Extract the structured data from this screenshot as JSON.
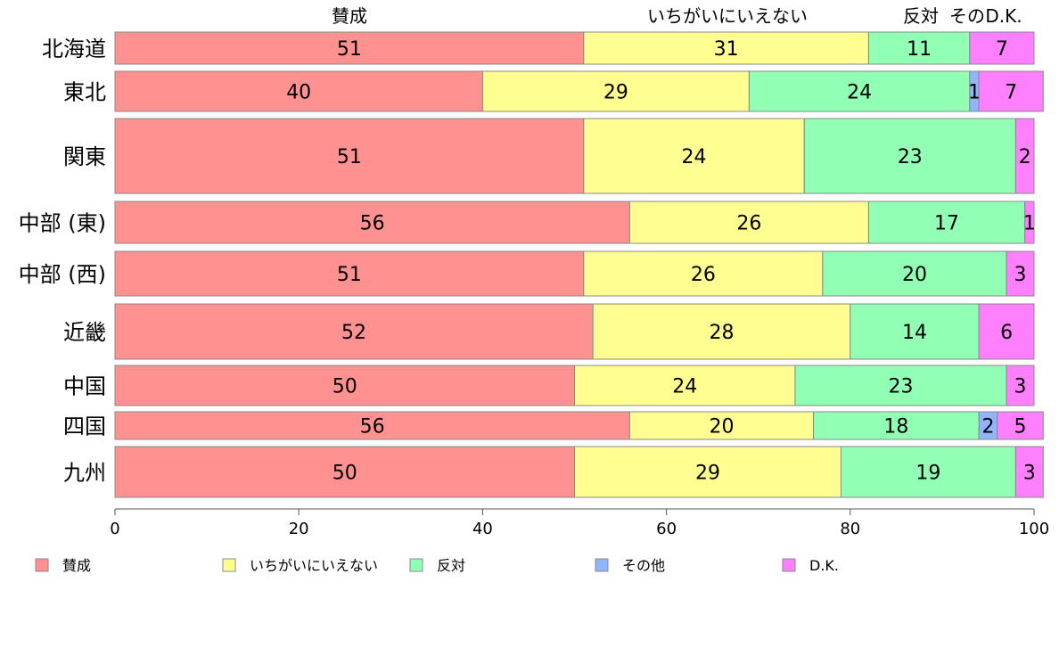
{
  "chart_data": {
    "type": "bar",
    "orientation": "horizontal",
    "stacked": true,
    "categories": [
      "北海道",
      "東北",
      "関東",
      "中部 (東)",
      "中部 (西)",
      "近畿",
      "中国",
      "四国",
      "九州"
    ],
    "series": [
      {
        "name": "賛成",
        "color": "#ff9191",
        "values": [
          51,
          40,
          51,
          56,
          51,
          52,
          50,
          56,
          50
        ]
      },
      {
        "name": "いちがいにいえない",
        "color": "#ffff91",
        "values": [
          31,
          29,
          24,
          26,
          26,
          28,
          24,
          20,
          29
        ]
      },
      {
        "name": "反対",
        "color": "#91ffb4",
        "values": [
          11,
          24,
          23,
          17,
          20,
          14,
          23,
          18,
          19
        ]
      },
      {
        "name": "その他",
        "color": "#91b4ff",
        "values": [
          0,
          1,
          0,
          0,
          0,
          0,
          0,
          2,
          0
        ]
      },
      {
        "name": "D.K.",
        "color": "#ff80ff",
        "values": [
          7,
          7,
          2,
          1,
          3,
          6,
          3,
          5,
          3
        ]
      }
    ],
    "bar_labels": [
      [
        "51",
        "31",
        "11",
        "",
        "7"
      ],
      [
        "40",
        "29",
        "24",
        "1",
        "7"
      ],
      [
        "51",
        "24",
        "23",
        "",
        "2"
      ],
      [
        "56",
        "26",
        "17",
        "",
        "1"
      ],
      [
        "51",
        "26",
        "20",
        "",
        "3"
      ],
      [
        "52",
        "28",
        "14",
        "",
        "6"
      ],
      [
        "50",
        "24",
        "23",
        "",
        "3"
      ],
      [
        "56",
        "20",
        "18",
        "2",
        "5"
      ],
      [
        "50",
        "29",
        "19",
        "",
        "3"
      ]
    ],
    "column_labels": [
      "賛成",
      "いちがいにいえない",
      "反対",
      "その",
      "D.K."
    ],
    "xlim": [
      0,
      100
    ],
    "xticks": [
      "0",
      "20",
      "40",
      "60",
      "80",
      "100"
    ],
    "legend_position": "bottom",
    "grid": false
  }
}
